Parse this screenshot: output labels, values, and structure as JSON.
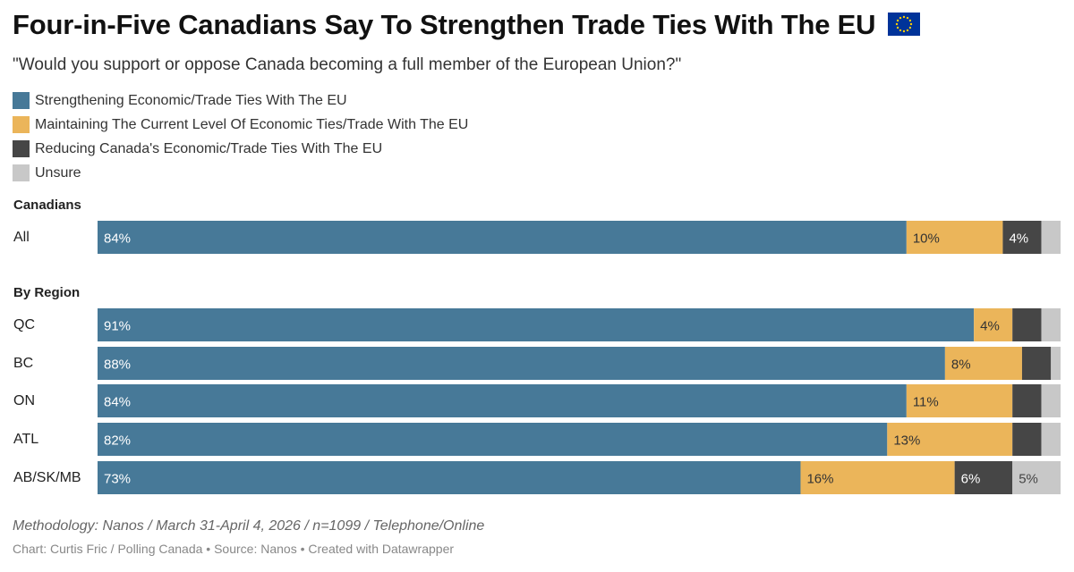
{
  "title": "Four-in-Five Canadians Say To Strengthen Trade Ties With The EU",
  "subtitle": "\"Would you support or oppose Canada becoming a full member of the European Union?\"",
  "colors": {
    "strengthening": "#477998",
    "maintaining": "#ebb55a",
    "reducing": "#464646",
    "unsure": "#c8c8c8",
    "flag_blue": "#003399",
    "flag_star": "#ffcc00"
  },
  "chart_data": {
    "type": "bar",
    "orientation": "horizontal",
    "stacked": true,
    "xlim": [
      0,
      100
    ],
    "legend_position": "top-left",
    "series": [
      {
        "name": "Strengthening Economic/Trade Ties With The EU",
        "key": "strengthening"
      },
      {
        "name": "Maintaining The Current Level Of Economic Ties/Trade With The EU",
        "key": "maintaining"
      },
      {
        "name": "Reducing Canada's Economic/Trade Ties With The EU",
        "key": "reducing"
      },
      {
        "name": "Unsure",
        "key": "unsure"
      }
    ],
    "groups": [
      {
        "label": "Canadians",
        "rows": [
          {
            "label": "All",
            "values": [
              84,
              10,
              4,
              2
            ],
            "data_labels": [
              "84%",
              "10%",
              "4%",
              ""
            ]
          }
        ]
      },
      {
        "label": "By Region",
        "rows": [
          {
            "label": "QC",
            "values": [
              91,
              4,
              3,
              2
            ],
            "data_labels": [
              "91%",
              "4%",
              "",
              ""
            ]
          },
          {
            "label": "BC",
            "values": [
              88,
              8,
              3,
              1
            ],
            "data_labels": [
              "88%",
              "8%",
              "",
              ""
            ]
          },
          {
            "label": "ON",
            "values": [
              84,
              11,
              3,
              2
            ],
            "data_labels": [
              "84%",
              "11%",
              "",
              ""
            ]
          },
          {
            "label": "ATL",
            "values": [
              82,
              13,
              3,
              2
            ],
            "data_labels": [
              "82%",
              "13%",
              "",
              ""
            ]
          },
          {
            "label": "AB/SK/MB",
            "values": [
              73,
              16,
              6,
              5
            ],
            "data_labels": [
              "73%",
              "16%",
              "6%",
              "5%"
            ]
          }
        ]
      }
    ]
  },
  "methodology": "Methodology: Nanos / March 31-April 4, 2026 / n=1099 / Telephone/Online",
  "credits": "Chart: Curtis Fric / Polling Canada • Source: Nanos • Created with Datawrapper"
}
